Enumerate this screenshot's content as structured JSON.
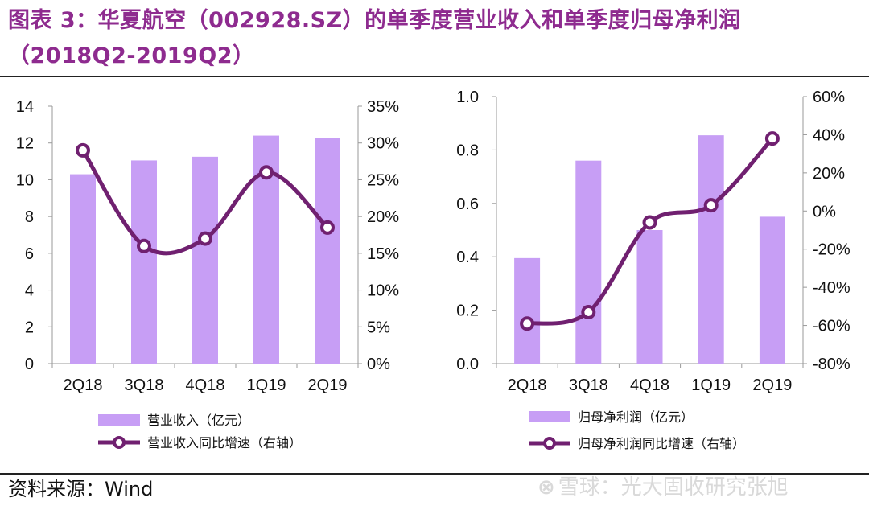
{
  "title": {
    "line1": "图表 3：华夏航空（002928.SZ）的单季度营业收入和单季度归母净利润",
    "line2": "（2018Q2-2019Q2）"
  },
  "source": "资料来源：Wind",
  "watermark": "雪球：光大固收研究张旭",
  "colors": {
    "bar": "#c79ef5",
    "line": "#702070",
    "marker_fill": "#ffffff",
    "title": "#8e2b8f"
  },
  "chart_data": [
    {
      "type": "bar+line",
      "categories": [
        "2Q18",
        "3Q18",
        "4Q18",
        "1Q19",
        "2Q19"
      ],
      "bar_series": {
        "name": "营业收入（亿元）",
        "values": [
          10.3,
          11.05,
          11.25,
          12.4,
          12.25
        ]
      },
      "line_series": {
        "name": "营业收入同比增速（右轴）",
        "values": [
          29.0,
          16.0,
          17.0,
          26.0,
          18.5
        ]
      },
      "y_left": {
        "min": 0,
        "max": 14,
        "ticks": [
          "0",
          "2",
          "4",
          "6",
          "8",
          "10",
          "12",
          "14"
        ]
      },
      "y_right": {
        "min": 0,
        "max": 35,
        "ticks": [
          "0%",
          "5%",
          "10%",
          "15%",
          "20%",
          "25%",
          "30%",
          "35%"
        ]
      },
      "legend_position": "bottom-left"
    },
    {
      "type": "bar+line",
      "categories": [
        "2Q18",
        "3Q18",
        "4Q18",
        "1Q19",
        "2Q19"
      ],
      "bar_series": {
        "name": "归母净利润（亿元）",
        "values": [
          0.395,
          0.76,
          0.5,
          0.855,
          0.55
        ]
      },
      "line_series": {
        "name": "归母净利润同比增速（右轴）",
        "values": [
          -59.0,
          -53.0,
          -6.0,
          3.0,
          38.0
        ]
      },
      "y_left": {
        "min": 0,
        "max": 1.0,
        "ticks": [
          "0.0",
          "0.2",
          "0.4",
          "0.6",
          "0.8",
          "1.0"
        ]
      },
      "y_right": {
        "min": -80,
        "max": 60,
        "ticks": [
          "-80%",
          "-60%",
          "-40%",
          "-20%",
          "0%",
          "20%",
          "40%",
          "60%"
        ]
      },
      "legend_position": "bottom-left"
    }
  ]
}
